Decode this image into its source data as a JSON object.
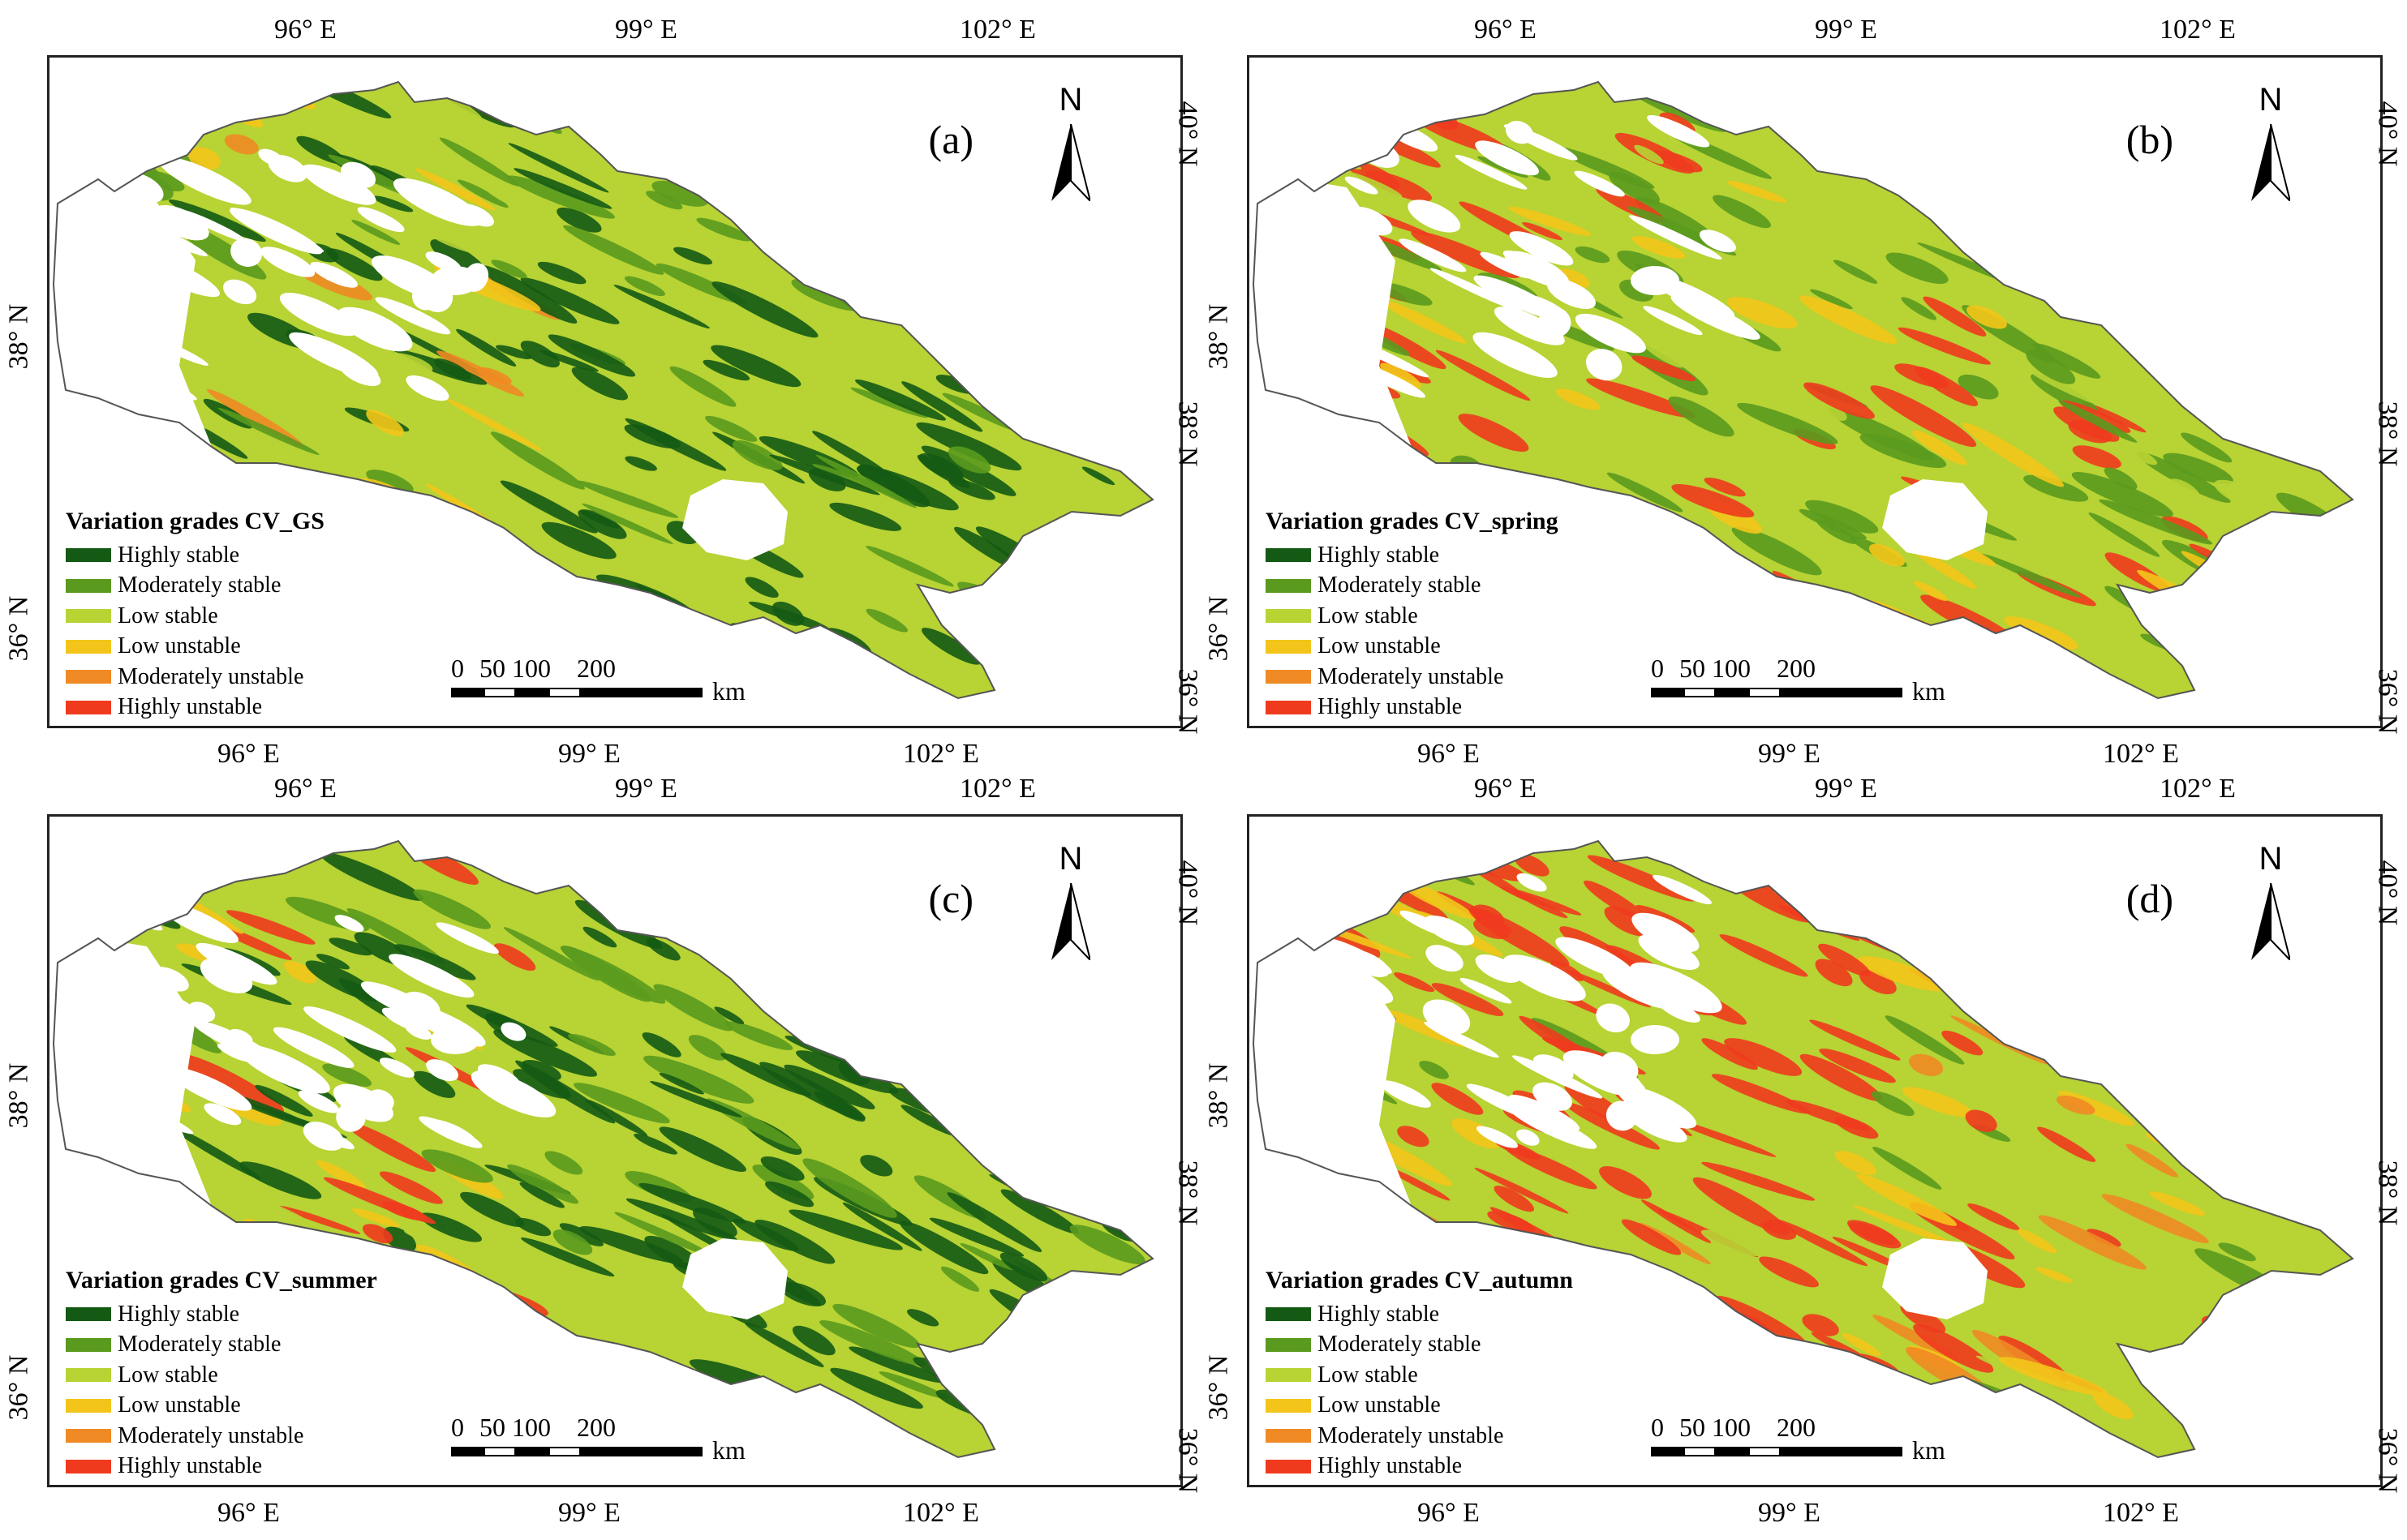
{
  "colors": {
    "highly_stable": "#145a14",
    "moderately_stable": "#5a9a1e",
    "low_stable": "#b7d334",
    "low_unstable": "#f3c51a",
    "moderately_unstable": "#f08a24",
    "highly_unstable": "#f03a1e",
    "boundary": "#555555"
  },
  "axis_labels": {
    "top": [
      "96° E",
      "99° E",
      "102° E"
    ],
    "bottom": [
      "96° E",
      "99° E",
      "102° E"
    ],
    "left": [
      "38° N",
      "36° N"
    ],
    "right": [
      "40° N",
      "38° N",
      "36° N"
    ]
  },
  "legend_items": [
    {
      "label": "Highly stable",
      "color_key": "highly_stable"
    },
    {
      "label": "Moderately stable",
      "color_key": "moderately_stable"
    },
    {
      "label": "Low stable",
      "color_key": "low_stable"
    },
    {
      "label": "Low unstable",
      "color_key": "low_unstable"
    },
    {
      "label": "Moderately unstable",
      "color_key": "moderately_unstable"
    },
    {
      "label": "Highly unstable",
      "color_key": "highly_unstable"
    }
  ],
  "north_arrow": {
    "letter": "N",
    "icon": "north-arrow-icon"
  },
  "scale_bar": {
    "ticks": [
      "0",
      "50",
      "100",
      "200"
    ],
    "unit": "km"
  },
  "panels": [
    {
      "id": "a",
      "label": "(a)",
      "legend_title": "Variation grades CV_GS",
      "dominant": "highly_stable"
    },
    {
      "id": "b",
      "label": "(b)",
      "legend_title": "Variation grades CV_spring",
      "dominant": "moderately_stable"
    },
    {
      "id": "c",
      "label": "(c)",
      "legend_title": "Variation grades CV_summer",
      "dominant": "highly_stable"
    },
    {
      "id": "d",
      "label": "(d)",
      "legend_title": "Variation grades CV_autumn",
      "dominant": "highly_unstable"
    }
  ]
}
